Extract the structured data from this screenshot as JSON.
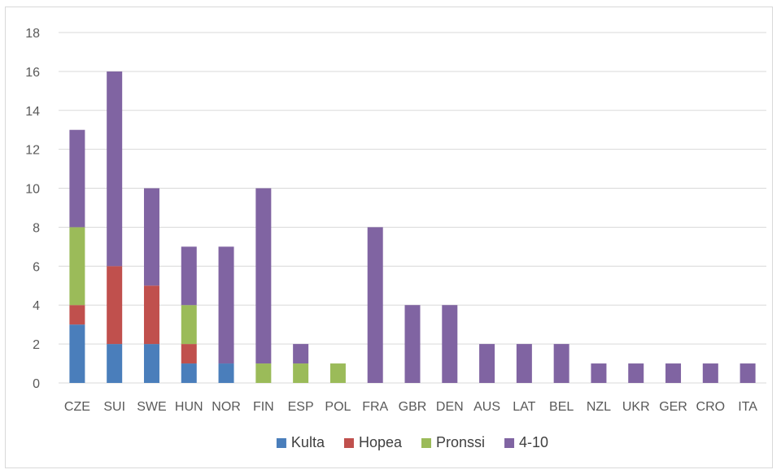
{
  "chart_data": {
    "type": "bar",
    "stacked": true,
    "title": "",
    "xlabel": "",
    "ylabel": "",
    "ylim": [
      0,
      18
    ],
    "ytick_step": 2,
    "yticks": [
      "0",
      "2",
      "4",
      "6",
      "8",
      "10",
      "12",
      "14",
      "16",
      "18"
    ],
    "grid": true,
    "legend_position": "bottom",
    "categories": [
      "CZE",
      "SUI",
      "SWE",
      "HUN",
      "NOR",
      "FIN",
      "ESP",
      "POL",
      "FRA",
      "GBR",
      "DEN",
      "AUS",
      "LAT",
      "BEL",
      "NZL",
      "UKR",
      "GER",
      "CRO",
      "ITA"
    ],
    "series": [
      {
        "name": "Kulta",
        "color": "#4a7ebb",
        "values": [
          3,
          2,
          2,
          1,
          1,
          0,
          0,
          0,
          0,
          0,
          0,
          0,
          0,
          0,
          0,
          0,
          0,
          0,
          0
        ]
      },
      {
        "name": "Hopea",
        "color": "#c0504d",
        "values": [
          1,
          4,
          3,
          1,
          0,
          0,
          0,
          0,
          0,
          0,
          0,
          0,
          0,
          0,
          0,
          0,
          0,
          0,
          0
        ]
      },
      {
        "name": "Pronssi",
        "color": "#9bbb59",
        "values": [
          4,
          0,
          0,
          2,
          0,
          1,
          1,
          1,
          0,
          0,
          0,
          0,
          0,
          0,
          0,
          0,
          0,
          0,
          0
        ]
      },
      {
        "name": "4-10",
        "color": "#8064a2",
        "values": [
          5,
          10,
          5,
          3,
          6,
          9,
          1,
          0,
          8,
          4,
          4,
          2,
          2,
          2,
          1,
          1,
          1,
          1,
          1
        ]
      }
    ]
  }
}
